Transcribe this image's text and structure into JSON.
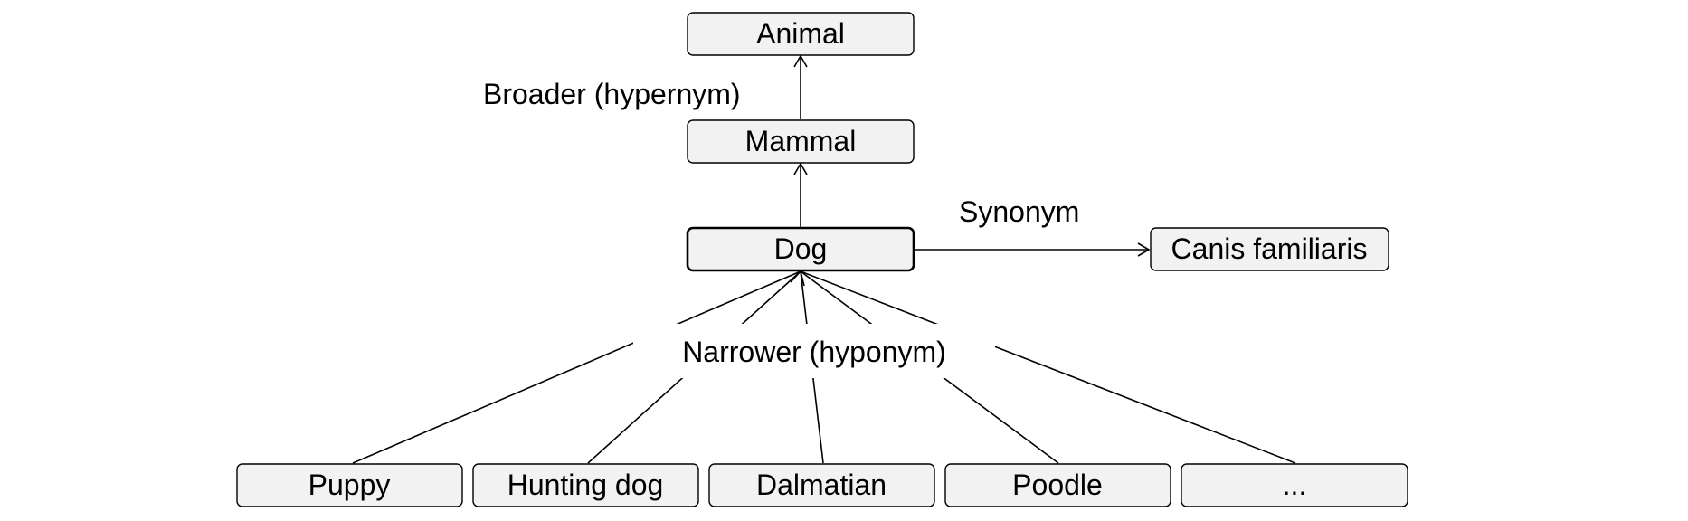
{
  "diagram": {
    "nodes": {
      "animal": "Animal",
      "mammal": "Mammal",
      "dog": "Dog",
      "canis": "Canis familiaris",
      "puppy": "Puppy",
      "hunting_dog": "Hunting dog",
      "dalmatian": "Dalmatian",
      "poodle": "Poodle",
      "more": "..."
    },
    "edge_labels": {
      "broader": "Broader (hypernym)",
      "synonym": "Synonym",
      "narrower": "Narrower (hyponym)"
    }
  }
}
